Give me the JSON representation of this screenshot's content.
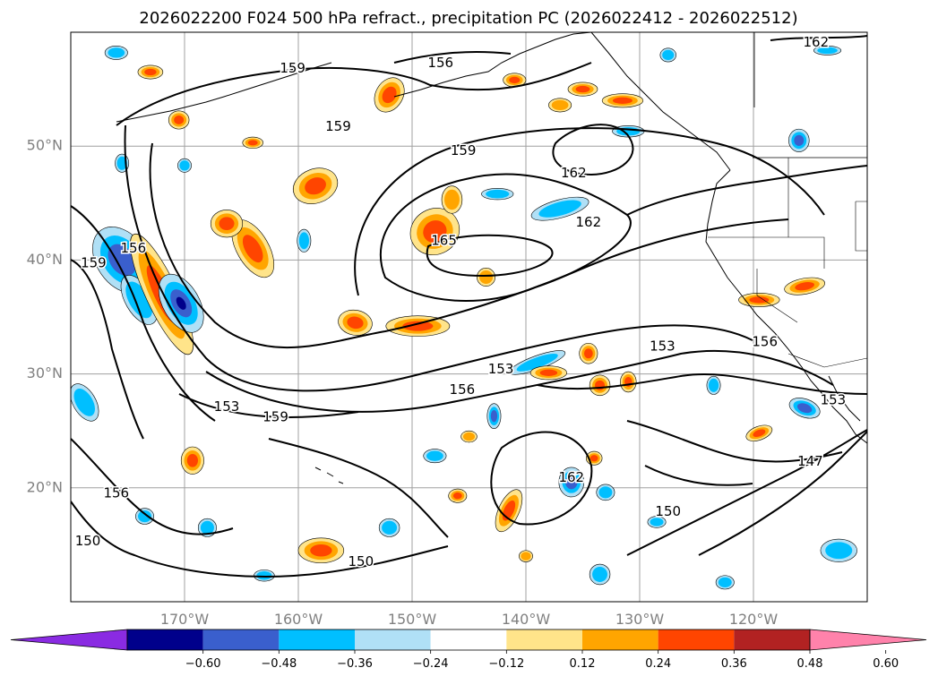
{
  "chart_data": {
    "type": "contour map",
    "title": "2026022200 F024 500 hPa refract., precipitation PC (2026022412 - 2026022512)",
    "lon_range": [
      -180,
      -110
    ],
    "lat_range": [
      10,
      60
    ],
    "lat_ticks": [
      {
        "lat": 20,
        "label": "20°N"
      },
      {
        "lat": 30,
        "label": "30°N"
      },
      {
        "lat": 40,
        "label": "40°N"
      },
      {
        "lat": 50,
        "label": "50°N"
      }
    ],
    "lon_ticks": [
      {
        "lon": -170,
        "label": "170°W"
      },
      {
        "lon": -160,
        "label": "160°W"
      },
      {
        "lon": -150,
        "label": "150°W"
      },
      {
        "lon": -140,
        "label": "140°W"
      },
      {
        "lon": -130,
        "label": "130°W"
      },
      {
        "lon": -120,
        "label": "120°W"
      }
    ],
    "grid": true,
    "contour_labels": [
      {
        "text": "159",
        "lon": -160.5,
        "lat": 56.8
      },
      {
        "text": "156",
        "lon": -147.5,
        "lat": 57.3
      },
      {
        "text": "162",
        "lon": -114.5,
        "lat": 59.1
      },
      {
        "text": "159",
        "lon": -156.5,
        "lat": 51.7
      },
      {
        "text": "159",
        "lon": -145.5,
        "lat": 49.6
      },
      {
        "text": "162",
        "lon": -135.8,
        "lat": 47.6
      },
      {
        "text": "162",
        "lon": -134.5,
        "lat": 43.3
      },
      {
        "text": "165",
        "lon": -147.2,
        "lat": 41.7
      },
      {
        "text": "156",
        "lon": -174.5,
        "lat": 41.0
      },
      {
        "text": "159",
        "lon": -178.0,
        "lat": 39.7
      },
      {
        "text": "153",
        "lon": -142.2,
        "lat": 30.4
      },
      {
        "text": "156",
        "lon": -145.6,
        "lat": 28.6
      },
      {
        "text": "153",
        "lon": -128.0,
        "lat": 32.4
      },
      {
        "text": "156",
        "lon": -119.0,
        "lat": 32.8
      },
      {
        "text": "153",
        "lon": -113.0,
        "lat": 27.7
      },
      {
        "text": "153",
        "lon": -166.3,
        "lat": 27.1
      },
      {
        "text": "159",
        "lon": -162.0,
        "lat": 26.2
      },
      {
        "text": "162",
        "lon": -136.0,
        "lat": 20.9
      },
      {
        "text": "156",
        "lon": -176.0,
        "lat": 19.5
      },
      {
        "text": "147",
        "lon": -115.0,
        "lat": 22.3
      },
      {
        "text": "150",
        "lon": -127.5,
        "lat": 17.9
      },
      {
        "text": "150",
        "lon": -178.5,
        "lat": 15.3
      },
      {
        "text": "150",
        "lon": -154.5,
        "lat": 13.5
      }
    ],
    "colorbar": {
      "levels": [
        -0.72,
        -0.6,
        -0.48,
        -0.36,
        -0.24,
        -0.12,
        0.12,
        0.24,
        0.36,
        0.48,
        0.6,
        0.72
      ],
      "tick_labels": [
        "−0.60",
        "−0.48",
        "−0.36",
        "−0.24",
        "−0.12",
        "0.12",
        "0.24",
        "0.36",
        "0.48",
        "0.60"
      ],
      "colors": [
        "#8a2be2",
        "#00008b",
        "#3a5fcd",
        "#00bfff",
        "#b0e0f6",
        "#ffffff",
        "#ffe48a",
        "#ffa500",
        "#ff4500",
        "#b22222",
        "#ff82ab"
      ],
      "extend": "both"
    },
    "precip_blobs": [
      {
        "lon": -175.5,
        "lat": 40.0,
        "rx": 2.2,
        "ry": 3.2,
        "rot": -35,
        "v": -0.5
      },
      {
        "lon": -174.0,
        "lat": 36.5,
        "rx": 1.2,
        "ry": 2.4,
        "rot": -30,
        "v": -0.3
      },
      {
        "lon": -172.0,
        "lat": 37.0,
        "rx": 1.4,
        "ry": 5.8,
        "rot": -25,
        "v": 0.45
      },
      {
        "lon": -170.3,
        "lat": 36.2,
        "rx": 1.6,
        "ry": 2.8,
        "rot": -30,
        "v": -0.55
      },
      {
        "lon": -178.8,
        "lat": 27.5,
        "rx": 1.0,
        "ry": 1.8,
        "rot": -30,
        "v": -0.3
      },
      {
        "lon": -164.0,
        "lat": 41.0,
        "rx": 1.4,
        "ry": 2.8,
        "rot": -30,
        "v": 0.4
      },
      {
        "lon": -166.3,
        "lat": 43.2,
        "rx": 1.4,
        "ry": 1.2,
        "rot": 0,
        "v": 0.4
      },
      {
        "lon": -158.5,
        "lat": 46.5,
        "rx": 2.0,
        "ry": 1.5,
        "rot": -20,
        "v": 0.45
      },
      {
        "lon": -152.0,
        "lat": 54.5,
        "rx": 1.2,
        "ry": 1.6,
        "rot": 30,
        "v": 0.4
      },
      {
        "lon": -148.0,
        "lat": 42.5,
        "rx": 2.2,
        "ry": 2.0,
        "rot": -30,
        "v": 0.4
      },
      {
        "lon": -146.5,
        "lat": 45.3,
        "rx": 0.9,
        "ry": 1.2,
        "rot": 0,
        "v": 0.35
      },
      {
        "lon": -155.0,
        "lat": 34.5,
        "rx": 1.5,
        "ry": 1.1,
        "rot": 10,
        "v": 0.4
      },
      {
        "lon": -149.5,
        "lat": 34.2,
        "rx": 2.8,
        "ry": 0.9,
        "rot": 0,
        "v": 0.45
      },
      {
        "lon": -143.5,
        "lat": 38.5,
        "rx": 0.8,
        "ry": 0.8,
        "rot": 0,
        "v": 0.35
      },
      {
        "lon": -169.3,
        "lat": 22.4,
        "rx": 1.0,
        "ry": 1.2,
        "rot": 0,
        "v": 0.4
      },
      {
        "lon": -158.0,
        "lat": 14.5,
        "rx": 2.0,
        "ry": 1.1,
        "rot": 0,
        "v": 0.4
      },
      {
        "lon": -137.0,
        "lat": 44.5,
        "rx": 2.6,
        "ry": 0.8,
        "rot": -15,
        "v": -0.35
      },
      {
        "lon": -142.5,
        "lat": 45.8,
        "rx": 1.4,
        "ry": 0.5,
        "rot": 0,
        "v": -0.3
      },
      {
        "lon": -139.0,
        "lat": 31.0,
        "rx": 2.6,
        "ry": 0.6,
        "rot": -20,
        "v": -0.3
      },
      {
        "lon": -138.0,
        "lat": 30.1,
        "rx": 1.6,
        "ry": 0.6,
        "rot": 0,
        "v": 0.4
      },
      {
        "lon": -136.0,
        "lat": 20.5,
        "rx": 1.1,
        "ry": 1.3,
        "rot": 0,
        "v": -0.4
      },
      {
        "lon": -142.8,
        "lat": 26.3,
        "rx": 0.6,
        "ry": 1.1,
        "rot": 0,
        "v": -0.45
      },
      {
        "lon": -141.5,
        "lat": 18.0,
        "rx": 0.9,
        "ry": 2.0,
        "rot": 25,
        "v": 0.4
      },
      {
        "lon": -119.5,
        "lat": 36.5,
        "rx": 1.8,
        "ry": 0.6,
        "rot": 0,
        "v": 0.4
      },
      {
        "lon": -115.5,
        "lat": 37.7,
        "rx": 1.8,
        "ry": 0.7,
        "rot": -10,
        "v": 0.45
      },
      {
        "lon": -119.5,
        "lat": 24.8,
        "rx": 1.2,
        "ry": 0.6,
        "rot": -20,
        "v": 0.4
      },
      {
        "lon": -115.5,
        "lat": 27.0,
        "rx": 1.4,
        "ry": 0.8,
        "rot": 20,
        "v": -0.4
      },
      {
        "lon": -112.5,
        "lat": 14.5,
        "rx": 1.6,
        "ry": 1.0,
        "rot": 0,
        "v": -0.35
      },
      {
        "lon": -134.5,
        "lat": 31.8,
        "rx": 0.8,
        "ry": 0.9,
        "rot": 0,
        "v": 0.4
      },
      {
        "lon": -133.5,
        "lat": 29.0,
        "rx": 0.9,
        "ry": 0.9,
        "rot": 0,
        "v": 0.4
      },
      {
        "lon": -131.0,
        "lat": 29.3,
        "rx": 0.7,
        "ry": 0.9,
        "rot": 0,
        "v": 0.45
      },
      {
        "lon": -134.0,
        "lat": 22.6,
        "rx": 0.7,
        "ry": 0.6,
        "rot": 0,
        "v": 0.4
      },
      {
        "lon": -133.5,
        "lat": 12.4,
        "rx": 0.9,
        "ry": 0.9,
        "rot": 0,
        "v": -0.35
      },
      {
        "lon": -133.0,
        "lat": 19.6,
        "rx": 0.8,
        "ry": 0.7,
        "rot": 0,
        "v": -0.3
      },
      {
        "lon": -128.5,
        "lat": 17.0,
        "rx": 0.8,
        "ry": 0.5,
        "rot": 0,
        "v": -0.3
      },
      {
        "lon": -131.0,
        "lat": 51.3,
        "rx": 1.4,
        "ry": 0.5,
        "rot": 0,
        "v": -0.3
      },
      {
        "lon": -131.5,
        "lat": 54.0,
        "rx": 1.8,
        "ry": 0.6,
        "rot": 0,
        "v": 0.4
      },
      {
        "lon": -135.0,
        "lat": 55.0,
        "rx": 1.3,
        "ry": 0.6,
        "rot": 0,
        "v": 0.4
      },
      {
        "lon": -137.0,
        "lat": 53.6,
        "rx": 1.0,
        "ry": 0.6,
        "rot": 0,
        "v": 0.35
      },
      {
        "lon": -141.0,
        "lat": 55.8,
        "rx": 1.0,
        "ry": 0.6,
        "rot": 0,
        "v": 0.4
      },
      {
        "lon": -116.0,
        "lat": 50.5,
        "rx": 0.9,
        "ry": 1.0,
        "rot": 0,
        "v": -0.45
      },
      {
        "lon": -170.5,
        "lat": 52.3,
        "rx": 0.9,
        "ry": 0.8,
        "rot": 0,
        "v": 0.4
      },
      {
        "lon": -173.0,
        "lat": 56.5,
        "rx": 1.1,
        "ry": 0.6,
        "rot": 0,
        "v": 0.4
      },
      {
        "lon": -176.0,
        "lat": 58.2,
        "rx": 1.0,
        "ry": 0.6,
        "rot": 0,
        "v": -0.3
      },
      {
        "lon": -164.0,
        "lat": 50.3,
        "rx": 0.9,
        "ry": 0.5,
        "rot": 0,
        "v": 0.4
      },
      {
        "lon": -148.0,
        "lat": 22.8,
        "rx": 1.0,
        "ry": 0.6,
        "rot": 0,
        "v": -0.35
      },
      {
        "lon": -145.0,
        "lat": 24.5,
        "rx": 0.7,
        "ry": 0.5,
        "rot": 0,
        "v": 0.35
      },
      {
        "lon": -146.0,
        "lat": 19.3,
        "rx": 0.8,
        "ry": 0.6,
        "rot": 0,
        "v": 0.4
      },
      {
        "lon": -168.0,
        "lat": 16.5,
        "rx": 0.8,
        "ry": 0.8,
        "rot": 0,
        "v": -0.35
      },
      {
        "lon": -173.5,
        "lat": 17.5,
        "rx": 0.8,
        "ry": 0.7,
        "rot": 0,
        "v": -0.3
      },
      {
        "lon": -163.0,
        "lat": 12.3,
        "rx": 0.9,
        "ry": 0.5,
        "rot": 0,
        "v": -0.3
      },
      {
        "lon": -152.0,
        "lat": 16.5,
        "rx": 0.9,
        "ry": 0.8,
        "rot": 0,
        "v": -0.35
      },
      {
        "lon": -140.0,
        "lat": 14.0,
        "rx": 0.6,
        "ry": 0.5,
        "rot": 0,
        "v": 0.35
      },
      {
        "lon": -122.5,
        "lat": 11.7,
        "rx": 0.8,
        "ry": 0.6,
        "rot": 0,
        "v": -0.3
      },
      {
        "lon": -123.5,
        "lat": 29.0,
        "rx": 0.6,
        "ry": 0.8,
        "rot": 0,
        "v": -0.3
      },
      {
        "lon": -170.0,
        "lat": 48.3,
        "rx": 0.6,
        "ry": 0.6,
        "rot": 0,
        "v": -0.3
      },
      {
        "lon": -175.5,
        "lat": 48.5,
        "rx": 0.6,
        "ry": 0.8,
        "rot": 0,
        "v": -0.3
      },
      {
        "lon": -159.5,
        "lat": 41.7,
        "rx": 0.6,
        "ry": 1.0,
        "rot": 0,
        "v": -0.3
      },
      {
        "lon": -127.5,
        "lat": 58.0,
        "rx": 0.7,
        "ry": 0.6,
        "rot": 0,
        "v": -0.3
      },
      {
        "lon": -113.5,
        "lat": 58.4,
        "rx": 1.2,
        "ry": 0.4,
        "rot": 0,
        "v": -0.3
      }
    ]
  }
}
